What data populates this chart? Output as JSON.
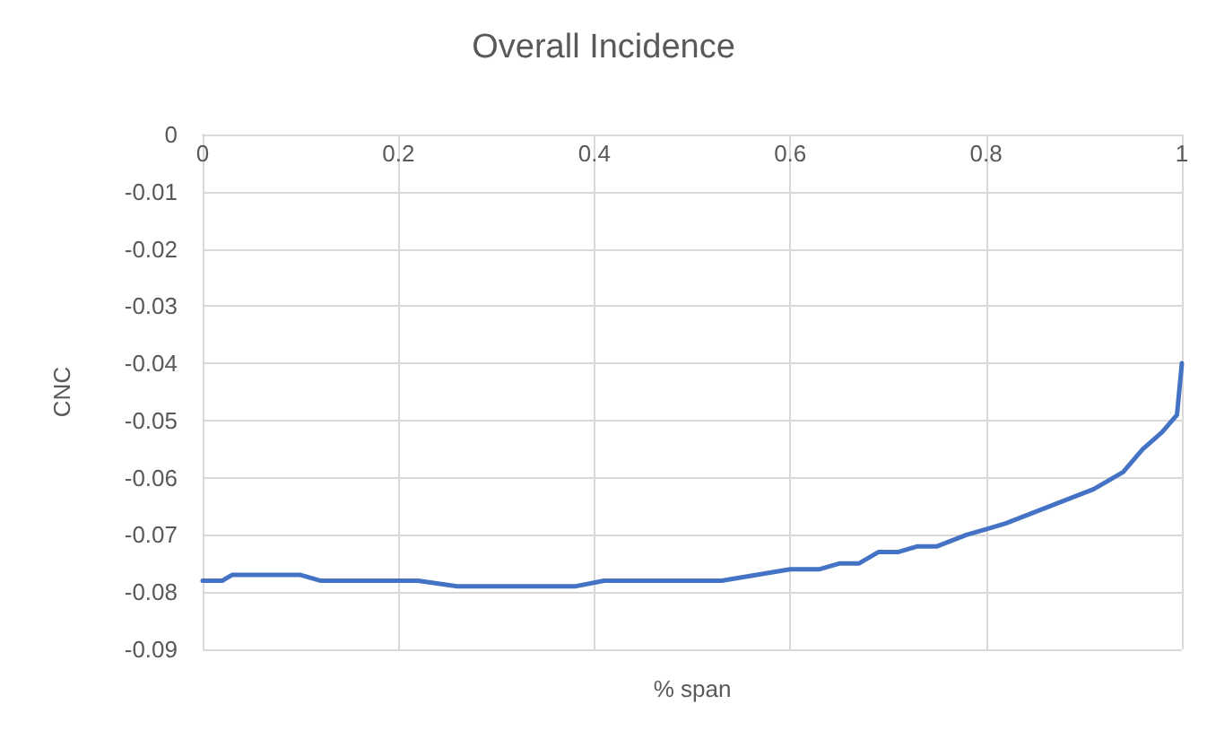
{
  "chart_data": {
    "type": "line",
    "title": "Overall Incidence",
    "xlabel": "% span",
    "ylabel": "CNC",
    "xlim": [
      0,
      1
    ],
    "xticks": [
      0,
      0.2,
      0.4,
      0.6,
      0.8,
      1
    ],
    "ylim": [
      -0.09,
      0
    ],
    "yticks": [
      -0.09,
      -0.08,
      -0.07,
      -0.06,
      -0.05,
      -0.04,
      -0.03,
      -0.02,
      -0.01,
      0
    ],
    "grid": true,
    "marker": "none",
    "line_style": "solid",
    "series": [
      {
        "color": "#4472c4",
        "x": [
          0,
          0.02,
          0.03,
          0.1,
          0.12,
          0.22,
          0.26,
          0.38,
          0.41,
          0.53,
          0.6,
          0.63,
          0.65,
          0.67,
          0.69,
          0.71,
          0.73,
          0.75,
          0.78,
          0.8,
          0.82,
          0.85,
          0.88,
          0.91,
          0.94,
          0.96,
          0.98,
          0.99,
          0.995,
          1
        ],
        "values": [
          -0.078,
          -0.078,
          -0.077,
          -0.077,
          -0.078,
          -0.078,
          -0.079,
          -0.079,
          -0.078,
          -0.078,
          -0.076,
          -0.076,
          -0.075,
          -0.075,
          -0.073,
          -0.073,
          -0.072,
          -0.072,
          -0.07,
          -0.069,
          -0.068,
          -0.066,
          -0.064,
          -0.062,
          -0.059,
          -0.055,
          -0.052,
          -0.05,
          -0.049,
          -0.04
        ]
      }
    ]
  }
}
